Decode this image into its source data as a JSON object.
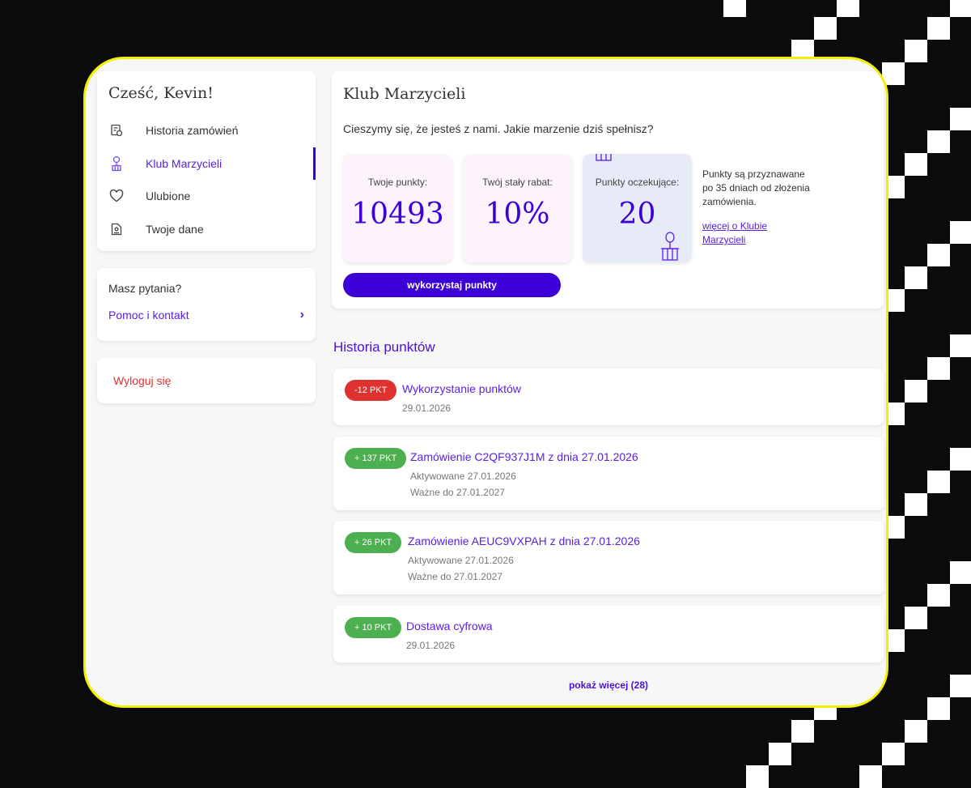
{
  "sidebar": {
    "greeting": "Cześć, Kevin!",
    "items": [
      {
        "label": "Historia zamówień",
        "icon": "order-history-icon"
      },
      {
        "label": "Klub Marzycieli",
        "icon": "balloon-gift-icon",
        "active": true
      },
      {
        "label": "Ulubione",
        "icon": "heart-icon"
      },
      {
        "label": "Twoje dane",
        "icon": "profile-document-icon"
      }
    ],
    "help_title": "Masz pytania?",
    "help_link": "Pomoc i kontakt",
    "logout": "Wyloguj się"
  },
  "club": {
    "title": "Klub Marzycieli",
    "intro": "Cieszymy się, że jesteś z nami. Jakie marzenie dziś spełnisz?",
    "stats": [
      {
        "label": "Twoje punkty:",
        "value": "10493"
      },
      {
        "label": "Twój stały rabat:",
        "value": "10%"
      },
      {
        "label": "Punkty oczekujące:",
        "value": "20"
      }
    ],
    "note": "Punkty są przyznawane po 35 dniach od złożenia zamówienia.",
    "more_link": "więcej o Klubie Marzycieli",
    "use_button": "wykorzystaj punkty"
  },
  "history": {
    "title": "Historia punktów",
    "items": [
      {
        "badge": "-12 PKT",
        "type": "negative",
        "title": "Wykorzystanie punktów",
        "lines": [
          "29.01.2026"
        ]
      },
      {
        "badge": "+ 137 PKT",
        "type": "positive",
        "title": "Zamówienie C2QF937J1M z dnia 27.01.2026",
        "lines": [
          "Aktywowane 27.01.2026",
          "Ważne do 27.01.2027"
        ]
      },
      {
        "badge": "+ 26 PKT",
        "type": "positive",
        "title": "Zamówienie AEUC9VXPAH z dnia 27.01.2026",
        "lines": [
          "Aktywowane 27.01.2026",
          "Ważne do 27.01.2027"
        ]
      },
      {
        "badge": "+ 10 PKT",
        "type": "positive",
        "title": "Dostawa cyfrowa",
        "lines": [
          "29.01.2026"
        ]
      }
    ],
    "show_more": "pokaż więcej (28)"
  },
  "colors": {
    "accent": "#3c00d6",
    "link": "#5a1fe0",
    "negative": "#e03131",
    "positive": "#4caf50",
    "frame": "#f5ef00",
    "logout": "#e03131"
  }
}
